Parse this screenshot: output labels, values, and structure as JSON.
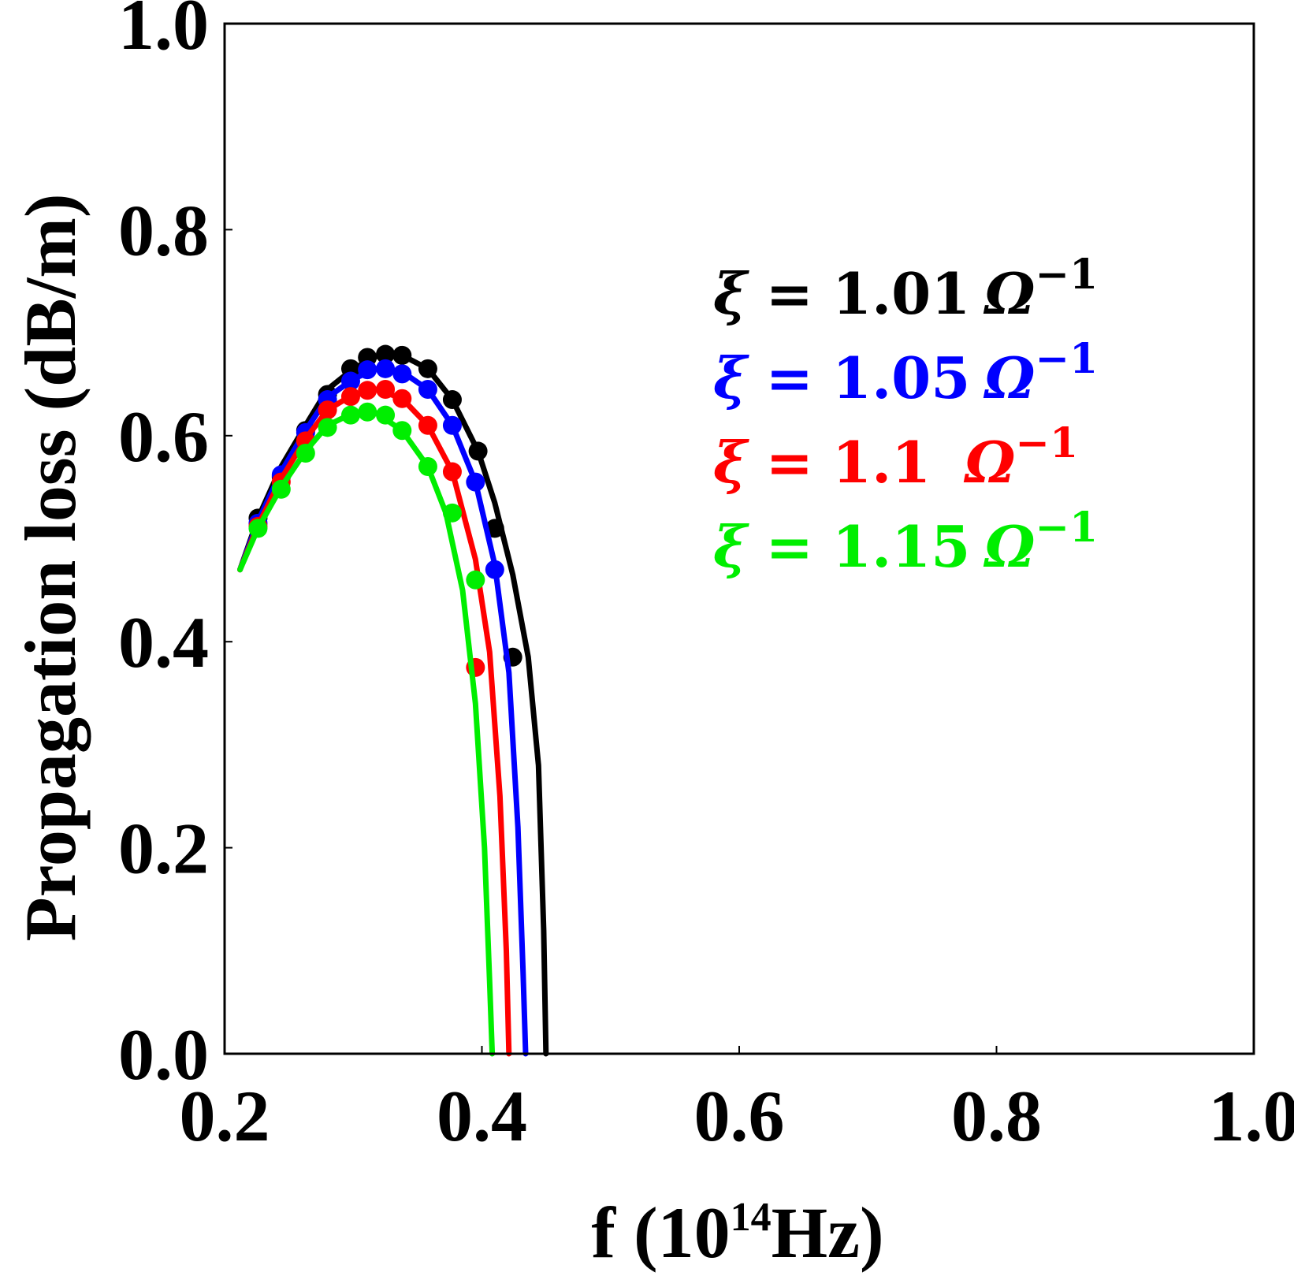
{
  "chart_data": {
    "type": "line",
    "xlabel_main": "f (10",
    "xlabel_sup": "14",
    "xlabel_tail": "Hz)",
    "ylabel": "Propagation loss (dB/m)",
    "xlim": [
      0.2,
      1.0
    ],
    "ylim": [
      0.0,
      1.0
    ],
    "xticks": [
      "0.2",
      "0.4",
      "0.6",
      "0.8",
      "1.0"
    ],
    "yticks": [
      "0.0",
      "0.2",
      "0.4",
      "0.6",
      "0.8",
      "1.0"
    ],
    "legend_position": "upper-right",
    "series": [
      {
        "name": "ξ = 1.01 Ω⁻¹",
        "legend": {
          "xi": "ξ",
          "eq": "=",
          "value": "1.01",
          "unit": "Ω",
          "exp": "−1"
        },
        "color": "#000000",
        "x": [
          0.212,
          0.226,
          0.244,
          0.263,
          0.28,
          0.3,
          0.318,
          0.338,
          0.358,
          0.377,
          0.397,
          0.41,
          0.424,
          0.436,
          0.444,
          0.448,
          0.4498
        ],
        "y": [
          0.47,
          0.52,
          0.57,
          0.61,
          0.645,
          0.665,
          0.677,
          0.678,
          0.665,
          0.635,
          0.585,
          0.535,
          0.465,
          0.385,
          0.28,
          0.12,
          0.0
        ],
        "markers_x": [
          0.226,
          0.244,
          0.263,
          0.28,
          0.298,
          0.311,
          0.325,
          0.338,
          0.358,
          0.377,
          0.397,
          0.41,
          0.424
        ],
        "markers_y": [
          0.52,
          0.56,
          0.605,
          0.64,
          0.665,
          0.676,
          0.679,
          0.678,
          0.665,
          0.635,
          0.585,
          0.51,
          0.385
        ]
      },
      {
        "name": "ξ = 1.05 Ω⁻¹",
        "legend": {
          "xi": "ξ",
          "eq": "=",
          "value": "1.05",
          "unit": "Ω",
          "exp": "−1"
        },
        "color": "#0000ff",
        "x": [
          0.212,
          0.226,
          0.244,
          0.263,
          0.28,
          0.3,
          0.318,
          0.338,
          0.358,
          0.377,
          0.395,
          0.41,
          0.421,
          0.428,
          0.432,
          0.434
        ],
        "y": [
          0.47,
          0.517,
          0.565,
          0.605,
          0.637,
          0.655,
          0.665,
          0.662,
          0.645,
          0.61,
          0.555,
          0.475,
          0.37,
          0.22,
          0.08,
          0.0
        ],
        "markers_x": [
          0.226,
          0.244,
          0.263,
          0.28,
          0.298,
          0.311,
          0.325,
          0.338,
          0.358,
          0.377,
          0.395,
          0.41
        ],
        "markers_y": [
          0.515,
          0.562,
          0.603,
          0.635,
          0.653,
          0.664,
          0.665,
          0.66,
          0.645,
          0.61,
          0.555,
          0.47
        ]
      },
      {
        "name": "ξ = 1.1  Ω⁻¹",
        "legend": {
          "xi": "ξ",
          "eq": "=",
          "value": "1.1 ",
          "unit": "Ω",
          "exp": "−1"
        },
        "color": "#ff0000",
        "x": [
          0.212,
          0.226,
          0.244,
          0.263,
          0.28,
          0.3,
          0.318,
          0.338,
          0.358,
          0.377,
          0.395,
          0.406,
          0.414,
          0.419,
          0.421
        ],
        "y": [
          0.47,
          0.513,
          0.558,
          0.597,
          0.625,
          0.64,
          0.645,
          0.636,
          0.61,
          0.565,
          0.48,
          0.39,
          0.25,
          0.1,
          0.0
        ],
        "markers_x": [
          0.226,
          0.244,
          0.263,
          0.28,
          0.298,
          0.311,
          0.325,
          0.338,
          0.358,
          0.377,
          0.395
        ],
        "markers_y": [
          0.512,
          0.555,
          0.595,
          0.625,
          0.638,
          0.644,
          0.645,
          0.636,
          0.61,
          0.565,
          0.375
        ]
      },
      {
        "name": "ξ = 1.15 Ω⁻¹",
        "legend": {
          "xi": "ξ",
          "eq": "=",
          "value": "1.15",
          "unit": "Ω",
          "exp": "−1"
        },
        "color": "#00ee00",
        "x": [
          0.212,
          0.226,
          0.244,
          0.263,
          0.28,
          0.3,
          0.318,
          0.338,
          0.358,
          0.372,
          0.385,
          0.395,
          0.402,
          0.406,
          0.408
        ],
        "y": [
          0.47,
          0.51,
          0.55,
          0.585,
          0.61,
          0.622,
          0.622,
          0.605,
          0.57,
          0.525,
          0.45,
          0.34,
          0.2,
          0.07,
          0.0
        ],
        "markers_x": [
          0.226,
          0.244,
          0.263,
          0.28,
          0.298,
          0.311,
          0.325,
          0.338,
          0.358,
          0.377,
          0.395
        ],
        "markers_y": [
          0.51,
          0.548,
          0.583,
          0.608,
          0.62,
          0.623,
          0.62,
          0.605,
          0.57,
          0.525,
          0.46
        ]
      }
    ]
  }
}
